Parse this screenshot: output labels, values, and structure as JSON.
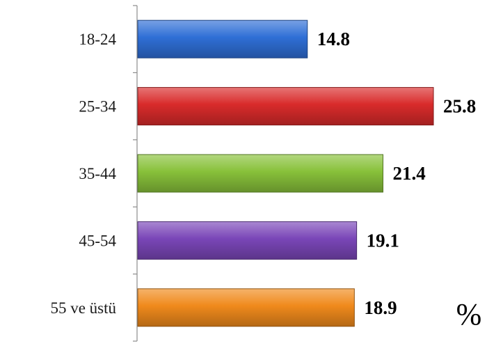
{
  "chart_data": {
    "type": "bar",
    "orientation": "horizontal",
    "categories": [
      "18-24",
      "25-34",
      "35-44",
      "45-54",
      "55 ve üstü"
    ],
    "values": [
      14.8,
      25.8,
      21.4,
      19.1,
      18.9
    ],
    "value_labels": [
      "14.8",
      "25.8",
      "21.4",
      "19.1",
      "18.9"
    ],
    "unit": "%",
    "xlim": [
      0,
      25.8
    ],
    "grid": false,
    "legend": "none",
    "colors": [
      "#2f6fd6",
      "#d92b2b",
      "#88c13a",
      "#7a46b8",
      "#f08a1c"
    ]
  }
}
